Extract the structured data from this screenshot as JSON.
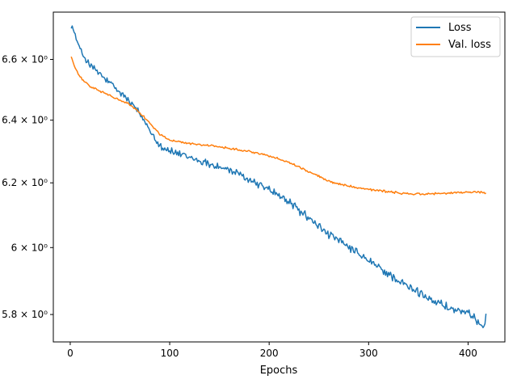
{
  "chart_data": {
    "type": "line",
    "xlabel": "Epochs",
    "ylabel": "",
    "y_scale": "log",
    "xlim": [
      -17,
      437
    ],
    "ylim": [
      5.72,
      6.76
    ],
    "x_ticks": [
      0,
      100,
      200,
      300,
      400
    ],
    "x_tick_labels": [
      "0",
      "100",
      "200",
      "300",
      "400"
    ],
    "y_ticks": [
      5.8,
      6.0,
      6.2,
      6.4,
      6.6
    ],
    "y_tick_labels": [
      "5.8 × 10⁰",
      "6 × 10⁰",
      "6.2 × 10⁰",
      "6.4 × 10⁰",
      "6.6 × 10⁰"
    ],
    "legend_position": "top-right",
    "grid": false,
    "series": [
      {
        "name": "Loss",
        "color": "#1f77b4",
        "noise": 0.016,
        "anchors": [
          [
            1,
            6.72
          ],
          [
            5,
            6.68
          ],
          [
            10,
            6.63
          ],
          [
            20,
            6.58
          ],
          [
            30,
            6.55
          ],
          [
            40,
            6.52
          ],
          [
            50,
            6.49
          ],
          [
            60,
            6.46
          ],
          [
            70,
            6.42
          ],
          [
            80,
            6.37
          ],
          [
            90,
            6.32
          ],
          [
            100,
            6.3
          ],
          [
            120,
            6.28
          ],
          [
            140,
            6.26
          ],
          [
            160,
            6.24
          ],
          [
            180,
            6.21
          ],
          [
            200,
            6.18
          ],
          [
            220,
            6.14
          ],
          [
            240,
            6.09
          ],
          [
            260,
            6.04
          ],
          [
            280,
            6.0
          ],
          [
            300,
            5.96
          ],
          [
            320,
            5.92
          ],
          [
            340,
            5.88
          ],
          [
            360,
            5.85
          ],
          [
            380,
            5.82
          ],
          [
            400,
            5.8
          ],
          [
            410,
            5.78
          ],
          [
            415,
            5.77
          ],
          [
            418,
            5.79
          ]
        ]
      },
      {
        "name": "Val. loss",
        "color": "#ff7f0e",
        "noise": 0.004,
        "anchors": [
          [
            1,
            6.61
          ],
          [
            5,
            6.57
          ],
          [
            10,
            6.54
          ],
          [
            20,
            6.51
          ],
          [
            30,
            6.495
          ],
          [
            40,
            6.48
          ],
          [
            50,
            6.465
          ],
          [
            60,
            6.45
          ],
          [
            70,
            6.425
          ],
          [
            80,
            6.39
          ],
          [
            90,
            6.355
          ],
          [
            100,
            6.335
          ],
          [
            120,
            6.325
          ],
          [
            140,
            6.318
          ],
          [
            160,
            6.31
          ],
          [
            180,
            6.3
          ],
          [
            200,
            6.285
          ],
          [
            220,
            6.265
          ],
          [
            240,
            6.235
          ],
          [
            260,
            6.205
          ],
          [
            280,
            6.19
          ],
          [
            300,
            6.18
          ],
          [
            320,
            6.172
          ],
          [
            340,
            6.165
          ],
          [
            360,
            6.165
          ],
          [
            380,
            6.168
          ],
          [
            400,
            6.17
          ],
          [
            410,
            6.172
          ],
          [
            418,
            6.168
          ]
        ]
      }
    ]
  }
}
